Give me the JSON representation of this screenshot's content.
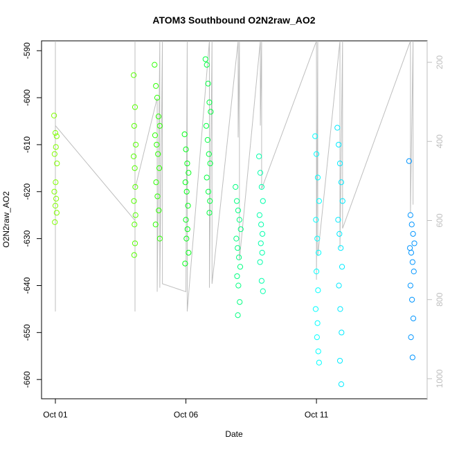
{
  "chart_data": {
    "type": "scatter",
    "title": "ATOM3 Southbound O2N2raw_AO2",
    "xlabel": "Date",
    "ylabel": "O2N2raw_AO2",
    "xlim": [
      -0.53,
      14.24
    ],
    "xticks": [
      {
        "value": 0,
        "label": "Oct 01"
      },
      {
        "value": 5,
        "label": "Oct 06"
      },
      {
        "value": 10,
        "label": "Oct 11"
      }
    ],
    "ylim": [
      -664.1,
      -587.9
    ],
    "yticks": [
      -660,
      -650,
      -640,
      -630,
      -620,
      -610,
      -600,
      -590
    ],
    "y2lim": [
      1050.8,
      145.7
    ],
    "y2ticks": [
      200,
      400,
      600,
      800,
      1000
    ],
    "series": [
      {
        "axis": "y2",
        "color": "#bebebe",
        "x": [
          0,
          0,
          0,
          3.05,
          3.05,
          3.05,
          3.05,
          3.9,
          3.9,
          4.0,
          4.0,
          4.1,
          4.1,
          5.0,
          5.05,
          5.05,
          5.9,
          5.9,
          6.0,
          6.0,
          7.0,
          7.0,
          7.05,
          7.05,
          7.85,
          7.85,
          7.9,
          7.9,
          10.0,
          10.0,
          10.05,
          10.05,
          10.9,
          10.9,
          11.0,
          11.0,
          13.6,
          13.6,
          13.7,
          13.7
        ],
        "values": [
          146,
          830,
          360,
          600,
          146,
          830,
          520,
          290,
          780,
          146,
          770,
          146,
          760,
          780,
          146,
          830,
          146,
          770,
          146,
          760,
          146,
          390,
          146,
          700,
          146,
          360,
          146,
          520,
          146,
          750,
          146,
          690,
          146,
          670,
          146,
          620,
          146,
          580,
          146,
          560
        ]
      },
      {
        "color": "#80ff00",
        "x": [
          -0.05,
          0,
          0.05,
          0.02,
          -0.03,
          0.06,
          0.01,
          -0.04,
          0.03,
          0,
          0.05,
          -0.02
        ],
        "values": [
          -603.8,
          -607.5,
          -608.2,
          -610.5,
          -612,
          -614,
          -618,
          -620,
          -621.5,
          -623,
          -624.5,
          -626.5
        ]
      },
      {
        "color": "#55ff00",
        "x": [
          3.0,
          3.05,
          3.02,
          3.08,
          3.0,
          3.04,
          3.06,
          3.01,
          3.07,
          3.03,
          3.05,
          3.02
        ],
        "values": [
          -595.2,
          -602,
          -606,
          -610,
          -612.5,
          -615,
          -619,
          -622,
          -625,
          -627,
          -631,
          -633.5
        ]
      },
      {
        "color": "#2bff00",
        "x": [
          3.8,
          3.85,
          3.9,
          3.95,
          4.0,
          3.82,
          3.88,
          3.93,
          3.98,
          3.86,
          3.91,
          3.96,
          3.84,
          4.0
        ],
        "values": [
          -593,
          -597.5,
          -600,
          -604,
          -606,
          -608,
          -610,
          -612,
          -615,
          -618,
          -621,
          -624,
          -627,
          -630
        ]
      },
      {
        "color": "#00ff15",
        "x": [
          4.95,
          5.0,
          5.05,
          5.1,
          4.98,
          5.03,
          5.08,
          5.0,
          5.06,
          5.02,
          5.1,
          4.97
        ],
        "values": [
          -607.8,
          -611,
          -614,
          -616,
          -618,
          -620,
          -623,
          -626,
          -628,
          -630,
          -633,
          -635.3
        ]
      },
      {
        "color": "#00ff40",
        "x": [
          5.75,
          5.8,
          5.85,
          5.9,
          5.95,
          5.78,
          5.83,
          5.88,
          5.93,
          5.8,
          5.86,
          5.92,
          5.9
        ],
        "values": [
          -591.8,
          -593,
          -597,
          -601,
          -603,
          -606,
          -609,
          -612,
          -614,
          -617,
          -620,
          -622,
          -624.5
        ]
      },
      {
        "color": "#00ff80",
        "x": [
          6.9,
          6.95,
          7.0,
          7.05,
          7.1,
          6.93,
          6.98,
          7.03,
          7.08,
          6.96,
          7.01,
          7.06,
          6.99
        ],
        "values": [
          -619,
          -622,
          -624,
          -626,
          -628,
          -630,
          -632,
          -634,
          -636,
          -638,
          -640,
          -643.5,
          -646.3
        ]
      },
      {
        "color": "#00ffaa",
        "x": [
          7.8,
          7.85,
          7.9,
          7.95,
          7.82,
          7.88,
          7.93,
          7.87,
          7.92,
          7.84,
          7.9,
          7.95
        ],
        "values": [
          -612.5,
          -616,
          -619,
          -622,
          -625,
          -627,
          -629,
          -631,
          -633,
          -635,
          -639,
          -641.2
        ]
      },
      {
        "color": "#00ffff",
        "x": [
          9.95,
          10.0,
          10.05,
          10.1,
          9.98,
          10.03,
          10.08,
          10.0,
          10.06,
          9.97,
          10.04,
          10.02,
          10.07,
          10.1
        ],
        "values": [
          -608.2,
          -612,
          -617,
          -622,
          -626,
          -630,
          -633,
          -637,
          -641,
          -645,
          -648,
          -651,
          -654,
          -656.4
        ]
      },
      {
        "color": "#00eaff",
        "x": [
          10.8,
          10.85,
          10.9,
          10.95,
          11.0,
          10.83,
          10.88,
          10.93,
          10.98,
          10.86,
          10.91,
          10.96,
          10.9,
          10.95
        ],
        "values": [
          -606.4,
          -610,
          -614,
          -618,
          -622,
          -626,
          -629,
          -632,
          -636,
          -640,
          -645,
          -650,
          -656,
          -661
        ]
      },
      {
        "color": "#0095ff",
        "x": [
          13.55,
          13.6,
          13.65,
          13.7,
          13.75,
          13.58,
          13.63,
          13.68,
          13.73,
          13.6,
          13.66,
          13.71,
          13.62,
          13.68
        ],
        "values": [
          -613.5,
          -625,
          -627,
          -629,
          -631,
          -632,
          -633,
          -635,
          -637,
          -640,
          -643,
          -647,
          -651,
          -655.3
        ]
      }
    ]
  }
}
